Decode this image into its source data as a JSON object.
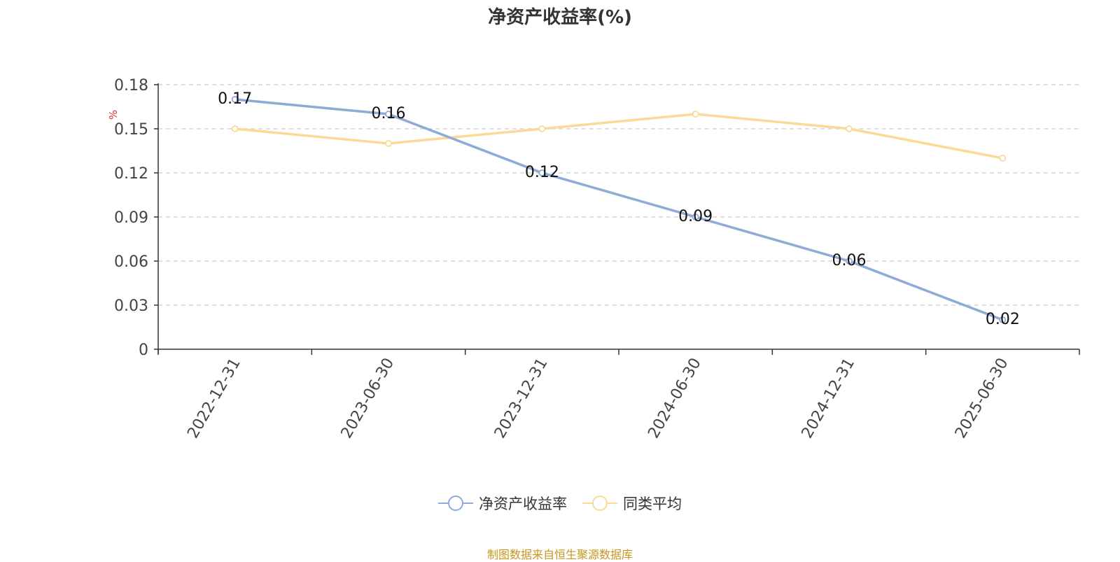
{
  "title": "净资产收益率(%)",
  "source_note": "制图数据来自恒生聚源数据库",
  "colors": {
    "series_1": "#8eaad6",
    "series_2": "#fcd996",
    "grid": "#cccccc",
    "axis": "#333333",
    "unit": "#e03030",
    "source": "#c8961e"
  },
  "chart_data": {
    "type": "line",
    "title": "净资产收益率(%)",
    "ylabel": "%",
    "ylim": [
      0,
      0.18
    ],
    "yticks": [
      "0",
      "0.03",
      "0.06",
      "0.09",
      "0.12",
      "0.15",
      "0.18"
    ],
    "categories": [
      "2022-12-31",
      "2023-06-30",
      "2023-12-31",
      "2024-06-30",
      "2024-12-31",
      "2025-06-30"
    ],
    "grid": true,
    "legend_position": "bottom-center",
    "series": [
      {
        "name": "净资产收益率",
        "values": [
          0.17,
          0.16,
          0.12,
          0.09,
          0.06,
          0.02
        ],
        "labels": [
          "0.17",
          "0.16",
          "0.12",
          "0.09",
          "0.06",
          "0.02"
        ]
      },
      {
        "name": "同类平均",
        "values": [
          0.15,
          0.14,
          0.15,
          0.16,
          0.15,
          0.13
        ]
      }
    ]
  }
}
